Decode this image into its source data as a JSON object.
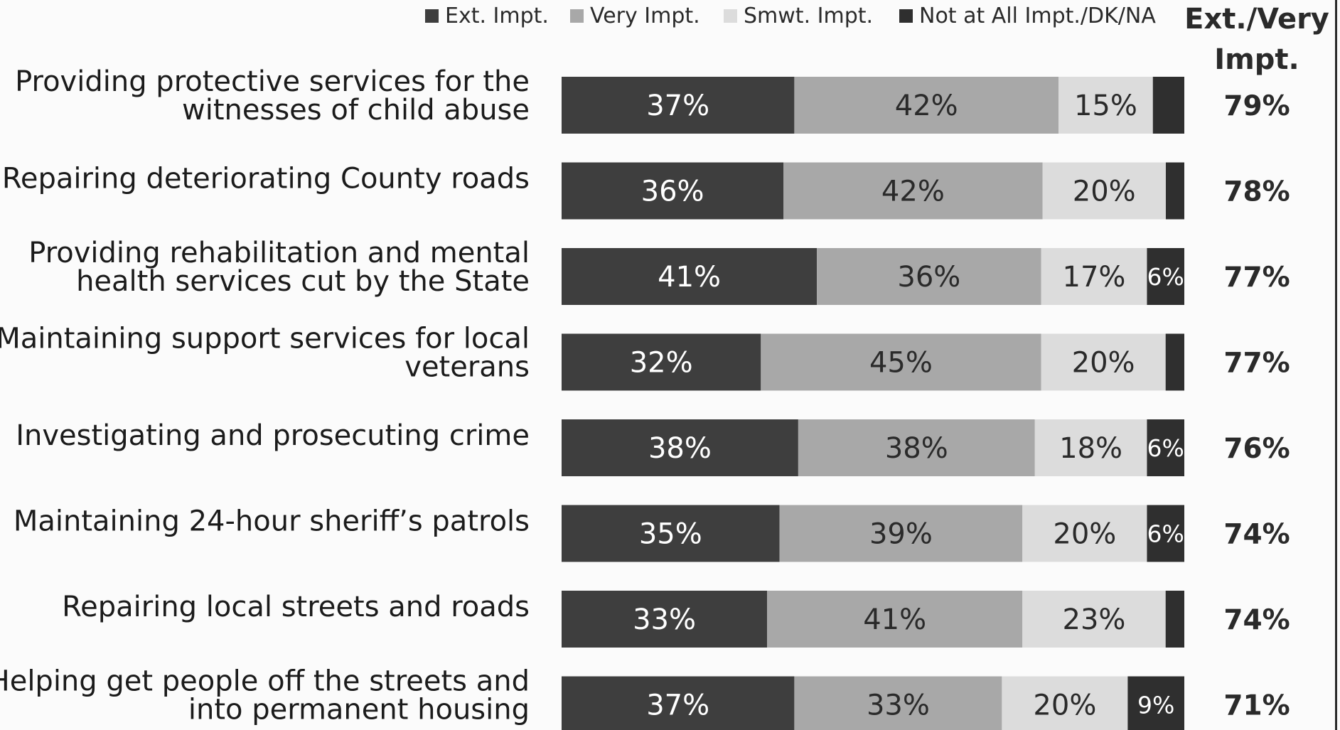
{
  "chart_data": {
    "type": "bar",
    "orientation": "horizontal",
    "stacked": true,
    "xlim": [
      0,
      100
    ],
    "legend_position": "top",
    "legend": [
      {
        "label": "Ext. Impt.",
        "color": "#3e3e3e"
      },
      {
        "label": "Very Impt.",
        "color": "#a8a8a8"
      },
      {
        "label": "Smwt. Impt.",
        "color": "#dcdcdc"
      },
      {
        "label": "Not at All Impt./DK/NA",
        "color": "#2f2f2f"
      }
    ],
    "total_header": "Ext./Very Impt.",
    "categories": [
      {
        "lines": [
          "Providing protective services for the",
          "witnesses of child abuse"
        ],
        "total": "79%"
      },
      {
        "lines": [
          "Repairing deteriorating County roads"
        ],
        "total": "78%"
      },
      {
        "lines": [
          "Providing rehabilitation and mental",
          "health services cut by the State"
        ],
        "total": "77%"
      },
      {
        "lines": [
          "Maintaining support services for local",
          "veterans"
        ],
        "total": "77%"
      },
      {
        "lines": [
          "Investigating and prosecuting crime"
        ],
        "total": "76%"
      },
      {
        "lines": [
          "Maintaining 24-hour sheriff’s patrols"
        ],
        "total": "74%"
      },
      {
        "lines": [
          "Repairing local streets and roads"
        ],
        "total": "74%"
      },
      {
        "lines": [
          "Helping get people off the streets and",
          "into permanent housing"
        ],
        "total": "71%"
      }
    ],
    "series": [
      {
        "name": "Ext. Impt.",
        "values": [
          37,
          36,
          41,
          32,
          38,
          35,
          33,
          37
        ],
        "labels": [
          "37%",
          "36%",
          "41%",
          "32%",
          "38%",
          "35%",
          "33%",
          "37%"
        ]
      },
      {
        "name": "Very Impt.",
        "values": [
          42,
          42,
          36,
          45,
          38,
          39,
          41,
          33
        ],
        "labels": [
          "42%",
          "42%",
          "36%",
          "45%",
          "38%",
          "39%",
          "41%",
          "33%"
        ]
      },
      {
        "name": "Smwt. Impt.",
        "values": [
          15,
          20,
          17,
          20,
          18,
          20,
          23,
          20
        ],
        "labels": [
          "15%",
          "20%",
          "17%",
          "20%",
          "18%",
          "20%",
          "23%",
          "20%"
        ]
      },
      {
        "name": "Not at All Impt./DK/NA",
        "values": [
          5,
          3,
          6,
          3,
          6,
          6,
          3,
          9
        ],
        "labels": [
          "",
          "",
          "6%",
          "",
          "6%",
          "6%",
          "",
          "9%"
        ]
      }
    ]
  }
}
